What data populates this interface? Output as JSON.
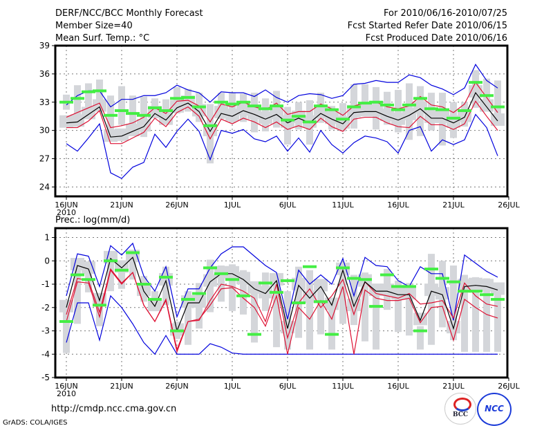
{
  "header": {
    "title": "DERF/NCC/BCC Monthly Forecast",
    "member_size": "Member Size=40",
    "variable": "Mean Surf. Temp.: °C",
    "period": "For 2010/06/16-2010/07/25",
    "started": "Fcst Started Refer Date 2010/06/15",
    "produced": "Fcst Produced Date 2010/06/16"
  },
  "footer": {
    "url": "http://cmdp.ncc.cma.gov.cn",
    "credit": "GrADS: COLA/IGES",
    "logos": [
      "BCC",
      "NCC"
    ]
  },
  "colors": {
    "max_min": "#0000dd",
    "spread": "#dd1133",
    "mean": "#000000",
    "marker": "#44ee44",
    "box": "#d4d6da"
  },
  "chart_data": [
    {
      "type": "line",
      "title": "Mean Surf. Temp.: °C",
      "ylim": [
        23,
        39
      ],
      "yticks": [
        24,
        27,
        30,
        33,
        36,
        39
      ],
      "xtick_labels": [
        "16JUN",
        "21JUN",
        "26JUN",
        "1JUL",
        "6JUL",
        "11JUL",
        "16JUL",
        "21JUL",
        "26JUL"
      ],
      "xtick_year": "2010",
      "grid": true,
      "series": [
        {
          "name": "max",
          "values": [
            32.7,
            33.7,
            34.2,
            34.2,
            32.5,
            33.3,
            33.3,
            33.7,
            33.7,
            34.0,
            34.8,
            34.3,
            34.0,
            33.0,
            34.1,
            34.0,
            34.0,
            33.6,
            34.3,
            33.5,
            33.0,
            33.7,
            33.9,
            33.8,
            33.4,
            33.7,
            34.9,
            35.0,
            35.3,
            35.1,
            35.1,
            35.9,
            35.6,
            34.8,
            34.4,
            33.8,
            34.5,
            37.0,
            35.3,
            34.5
          ]
        },
        {
          "name": "upper",
          "values": [
            31.4,
            31.9,
            32.4,
            32.9,
            30.3,
            30.5,
            30.8,
            31.4,
            32.4,
            31.8,
            33.1,
            33.2,
            32.6,
            30.9,
            32.8,
            32.5,
            33.0,
            32.5,
            32.2,
            32.9,
            31.7,
            32.0,
            32.0,
            32.8,
            32.3,
            31.6,
            32.6,
            32.9,
            33.0,
            32.5,
            32.3,
            32.6,
            33.6,
            32.7,
            32.5,
            31.9,
            32.8,
            35.1,
            33.5,
            31.9
          ]
        },
        {
          "name": "mean",
          "values": [
            30.8,
            30.9,
            31.7,
            32.5,
            29.3,
            29.4,
            29.9,
            30.4,
            31.8,
            31.1,
            32.4,
            32.9,
            32.0,
            29.9,
            31.8,
            31.5,
            32.1,
            31.7,
            31.2,
            31.7,
            30.8,
            31.3,
            30.8,
            31.8,
            31.2,
            30.7,
            31.9,
            32.0,
            32.0,
            31.5,
            31.1,
            31.6,
            32.3,
            31.3,
            31.3,
            30.8,
            31.4,
            34.0,
            32.5,
            31.0
          ]
        },
        {
          "name": "lower",
          "values": [
            30.3,
            30.3,
            31.0,
            32.1,
            28.6,
            28.6,
            29.2,
            29.8,
            31.3,
            30.4,
            31.9,
            32.5,
            31.5,
            29.1,
            31.2,
            30.7,
            31.3,
            30.9,
            30.3,
            30.9,
            30.1,
            30.5,
            30.1,
            31.3,
            30.4,
            29.9,
            31.2,
            31.4,
            31.4,
            30.8,
            30.4,
            30.3,
            31.5,
            30.6,
            30.6,
            30.1,
            30.7,
            33.1,
            31.5,
            30.0
          ]
        },
        {
          "name": "min",
          "values": [
            28.6,
            27.8,
            29.2,
            30.7,
            25.5,
            24.9,
            26.1,
            26.6,
            29.6,
            28.2,
            29.9,
            31.2,
            29.9,
            26.9,
            30.0,
            29.7,
            30.1,
            29.1,
            28.8,
            29.4,
            27.8,
            29.2,
            27.7,
            30.0,
            28.5,
            27.6,
            28.7,
            29.4,
            29.2,
            28.8,
            27.6,
            30.0,
            30.4,
            27.8,
            29.0,
            28.5,
            29.0,
            31.7,
            30.3,
            27.3
          ]
        },
        {
          "name": "marker",
          "values": [
            33.0,
            33.4,
            34.1,
            34.2,
            31.6,
            32.1,
            31.8,
            31.6,
            32.4,
            32.1,
            33.4,
            33.5,
            32.5,
            30.5,
            33.0,
            32.8,
            33.0,
            32.6,
            32.3,
            32.6,
            31.1,
            31.5,
            30.9,
            32.6,
            32.2,
            31.2,
            32.5,
            32.9,
            33.0,
            32.7,
            32.2,
            32.7,
            33.4,
            32.3,
            32.2,
            31.3,
            32.1,
            35.1,
            33.7,
            32.5
          ]
        },
        {
          "name": "box_hi",
          "values": [
            33.8,
            34.8,
            35.0,
            35.4,
            33.7,
            34.7,
            33.7,
            33.6,
            33.4,
            33.3,
            34.6,
            34.4,
            34.0,
            32.8,
            34.0,
            34.0,
            33.9,
            34.0,
            33.4,
            34.2,
            32.5,
            33.0,
            33.2,
            34.0,
            32.6,
            32.9,
            34.9,
            34.9,
            34.6,
            34.1,
            34.3,
            35.0,
            34.7,
            34.0,
            34.0,
            33.0,
            33.0,
            36.4,
            35.5,
            35.3
          ]
        },
        {
          "name": "box_lo",
          "values": [
            32.2,
            31.5,
            32.5,
            33.0,
            29.6,
            30.6,
            30.0,
            29.3,
            31.7,
            30.6,
            31.8,
            32.0,
            30.9,
            26.5,
            31.2,
            30.8,
            30.9,
            29.8,
            29.9,
            30.3,
            28.5,
            30.1,
            28.5,
            30.8,
            30.1,
            29.9,
            30.2,
            31.6,
            30.1,
            30.6,
            29.8,
            29.0,
            29.4,
            30.0,
            28.4,
            29.2,
            30.4,
            32.4,
            32.3,
            30.6
          ]
        }
      ]
    },
    {
      "type": "line",
      "title": "Prec.: log(mm/d)",
      "ylim": [
        -5,
        1.4
      ],
      "yticks": [
        -5,
        -4,
        -3,
        -2,
        -1,
        0,
        1
      ],
      "xtick_labels": [
        "16JUN",
        "21JUN",
        "26JUN",
        "1JUL",
        "6JUL",
        "11JUL",
        "16JUL",
        "21JUL",
        "26JUL"
      ],
      "xtick_year": "2010",
      "grid": true,
      "series": [
        {
          "name": "max",
          "values": [
            -1.5,
            0.3,
            0.2,
            -1.1,
            0.65,
            0.25,
            0.75,
            -0.65,
            -1.3,
            -0.25,
            -2.4,
            -1.2,
            -1.2,
            -0.3,
            0.3,
            0.6,
            0.6,
            0.2,
            -0.2,
            -0.5,
            -2.5,
            -0.4,
            -1.0,
            -0.6,
            -1.0,
            0.1,
            -1.5,
            0.15,
            -0.2,
            -0.25,
            -0.85,
            -1.1,
            -0.25,
            -0.55,
            -0.55,
            -2.55,
            0.25,
            -0.1,
            -0.45,
            -0.7
          ]
        },
        {
          "name": "upper",
          "values": [
            -2.3,
            -0.75,
            -0.85,
            -2.2,
            -0.35,
            -0.95,
            -0.5,
            -1.9,
            -2.6,
            -1.65,
            -3.8,
            -2.6,
            -2.55,
            -1.7,
            -1.0,
            -1.1,
            -1.3,
            -1.6,
            -2.6,
            -1.0,
            -3.3,
            -1.8,
            -1.2,
            -2.0,
            -1.5,
            -0.8,
            -2.3,
            -0.9,
            -1.4,
            -1.5,
            -1.6,
            -1.4,
            -1.85,
            -1.8,
            -1.7,
            -2.45,
            -0.95,
            -1.5,
            -1.85,
            -1.95
          ]
        },
        {
          "name": "mean",
          "values": [
            -2.0,
            -0.2,
            -0.35,
            -1.7,
            0.1,
            -0.3,
            0.15,
            -1.3,
            -1.95,
            -0.85,
            -3.0,
            -1.8,
            -1.8,
            -0.9,
            -0.55,
            -0.55,
            -0.8,
            -1.2,
            -1.4,
            -0.85,
            -2.9,
            -1.05,
            -1.6,
            -1.1,
            -1.9,
            -0.4,
            -1.95,
            -0.9,
            -1.3,
            -1.3,
            -1.45,
            -1.45,
            -2.55,
            -1.3,
            -1.45,
            -2.9,
            -1.1,
            -1.05,
            -1.1,
            -1.25
          ]
        },
        {
          "name": "lower",
          "values": [
            -2.6,
            -0.9,
            -0.95,
            -2.4,
            -0.4,
            -1.0,
            -0.5,
            -1.9,
            -2.6,
            -1.7,
            -3.9,
            -2.6,
            -2.5,
            -1.9,
            -1.2,
            -1.15,
            -1.6,
            -2.0,
            -2.8,
            -1.5,
            -4.0,
            -2.0,
            -2.5,
            -1.7,
            -2.5,
            -1.1,
            -4.0,
            -1.25,
            -1.6,
            -1.7,
            -1.7,
            -1.6,
            -2.65,
            -2.0,
            -1.95,
            -3.4,
            -1.65,
            -2.0,
            -2.3,
            -2.45
          ]
        },
        {
          "name": "min",
          "values": [
            -3.5,
            -1.8,
            -1.8,
            -3.4,
            -1.5,
            -2.0,
            -2.7,
            -3.5,
            -4.0,
            -3.2,
            -4.0,
            -4.0,
            -4.0,
            -3.55,
            -3.7,
            -3.95,
            -4.0,
            -4.0,
            -4.0,
            -4.0,
            -4.0,
            -4.0,
            -4.0,
            -4.0,
            -4.0,
            -4.0,
            -4.0,
            -4.0,
            -4.0,
            -4.0,
            -4.0,
            -4.0,
            -4.0,
            -4.0,
            -4.0,
            -4.0,
            -4.0,
            -4.0,
            -4.0,
            -4.0
          ]
        },
        {
          "name": "marker",
          "values": [
            -2.6,
            -0.6,
            -0.8,
            -1.9,
            0.0,
            -0.4,
            0.35,
            -1.0,
            -1.65,
            -0.7,
            -3.0,
            -1.65,
            -1.4,
            -0.3,
            -0.55,
            -0.8,
            -1.5,
            -3.15,
            -0.95,
            -1.35,
            -0.85,
            -1.8,
            -0.25,
            -1.75,
            -3.15,
            -0.3,
            -0.75,
            -0.8,
            -1.95,
            -0.6,
            -1.1,
            -1.1,
            -3.0,
            -0.35,
            -0.75,
            -0.9,
            -1.3,
            -1.3,
            -1.45,
            -1.65
          ]
        },
        {
          "name": "box_hi",
          "values": [
            -2.1,
            -0.1,
            -0.4,
            -1.6,
            0.35,
            -0.15,
            0.45,
            -0.65,
            -1.3,
            -0.25,
            -2.6,
            -1.3,
            -0.95,
            0.05,
            -0.2,
            -0.15,
            -0.4,
            -1.1,
            -0.5,
            -0.7,
            -1.3,
            -0.25,
            -0.4,
            -1.05,
            -1.6,
            -0.25,
            -0.6,
            -0.5,
            -1.15,
            -0.35,
            -0.85,
            -0.95,
            -2.8,
            0.3,
            0.0,
            -0.2,
            -0.6,
            -0.7,
            -0.75,
            -1.1
          ]
        },
        {
          "name": "box_lo",
          "values": [
            -3.95,
            -2.7,
            -1.35,
            -2.8,
            -1.3,
            -1.2,
            -0.8,
            -1.75,
            -1.95,
            -1.9,
            -3.35,
            -3.6,
            -2.9,
            -2.2,
            -1.75,
            -2.15,
            -2.3,
            -3.5,
            -2.15,
            -3.7,
            -3.8,
            -3.3,
            -3.8,
            -3.15,
            -3.8,
            -2.7,
            -2.75,
            -3.45,
            -3.8,
            -2.1,
            -3.05,
            -3.2,
            -3.8,
            -3.6,
            -2.85,
            -3.4,
            -3.9,
            -3.9,
            -3.9,
            -3.9
          ]
        }
      ]
    }
  ]
}
